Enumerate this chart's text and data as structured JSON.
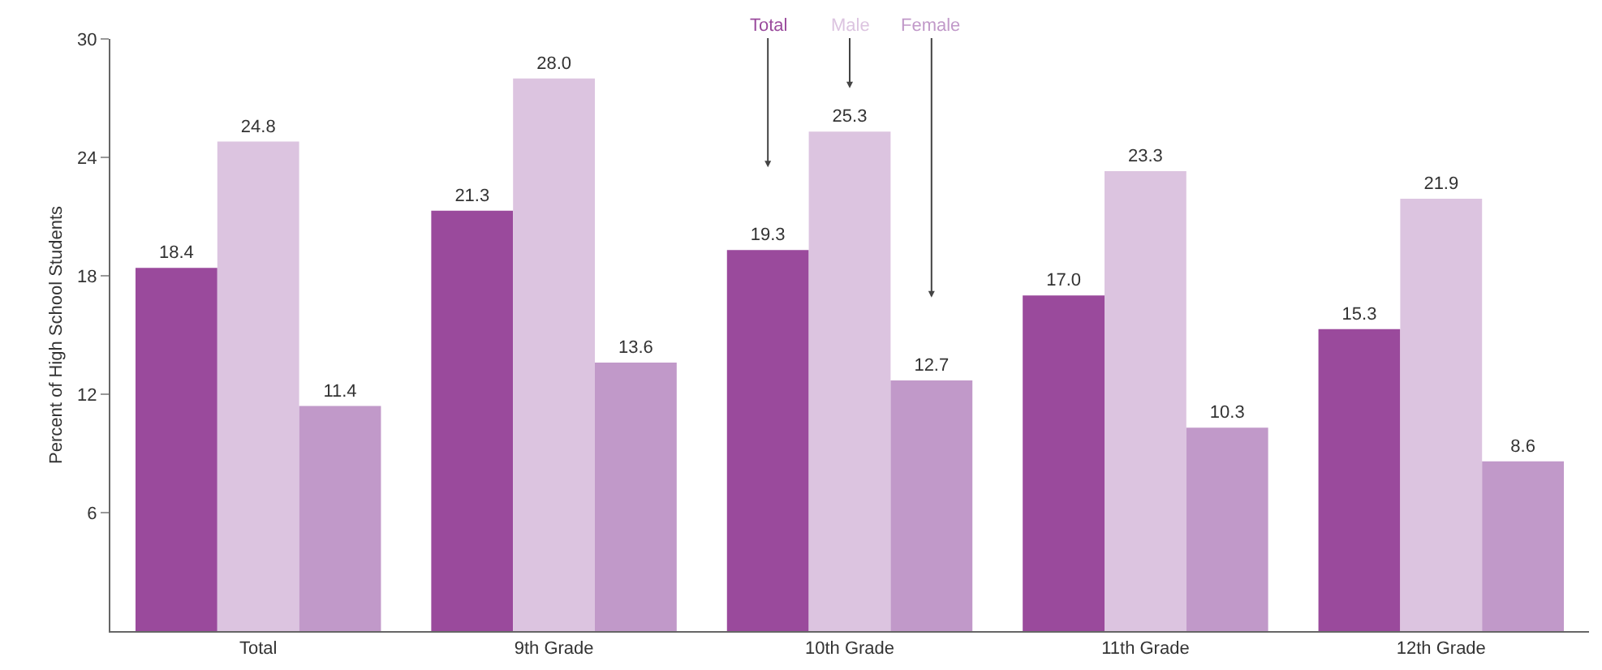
{
  "chart_data": {
    "type": "bar",
    "ylabel": "Percent of High School Students",
    "categories": [
      "Total",
      "9th Grade",
      "10th Grade",
      "11th Grade",
      "12th Grade"
    ],
    "series": [
      {
        "name": "Total",
        "color": "#9a4a9c",
        "values": [
          18.4,
          21.3,
          19.3,
          17.0,
          15.3
        ],
        "value_labels": [
          "18.4",
          "21.3",
          "19.3",
          "17.0",
          "15.3"
        ]
      },
      {
        "name": "Male",
        "color": "#dcc4e0",
        "values": [
          24.8,
          28.0,
          25.3,
          23.3,
          21.9
        ],
        "value_labels": [
          "24.8",
          "28.0",
          "25.3",
          "23.3",
          "21.9"
        ]
      },
      {
        "name": "Female",
        "color": "#c199c9",
        "values": [
          11.4,
          13.6,
          12.7,
          10.3,
          8.6
        ],
        "value_labels": [
          "11.4",
          "13.6",
          "12.7",
          "10.3",
          "8.6"
        ]
      }
    ],
    "ylim": [
      0,
      30
    ],
    "yticks": [
      6,
      12,
      18,
      24,
      30
    ],
    "grid": false,
    "legend": false
  }
}
